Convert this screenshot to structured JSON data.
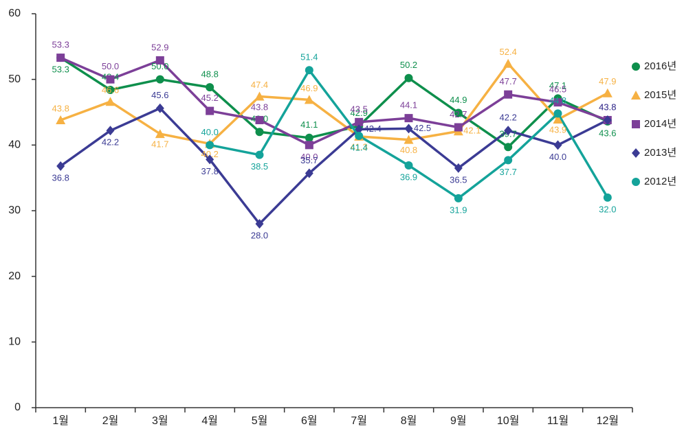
{
  "chart_data": {
    "type": "line",
    "categories": [
      "1월",
      "2월",
      "3월",
      "4월",
      "5월",
      "6월",
      "7월",
      "8월",
      "9월",
      "10월",
      "11월",
      "12월"
    ],
    "ylim": [
      0,
      60
    ],
    "yticks": [
      0,
      10,
      20,
      30,
      40,
      50,
      60
    ],
    "grid": false,
    "legend": "right",
    "series": [
      {
        "name": "2016년",
        "color": "#0e8f4c",
        "marker": "circle",
        "values": [
          53.3,
          48.4,
          50.0,
          48.8,
          42.0,
          41.1,
          42.9,
          50.2,
          44.9,
          39.7,
          47.1,
          43.6
        ],
        "value_labels": [
          "53.3",
          "48.4",
          "50.0",
          "48.8",
          "42.0",
          "41.1",
          "42.9",
          "50.2",
          "44.9",
          "39.7",
          "47.1",
          "43.6"
        ]
      },
      {
        "name": "2015년",
        "color": "#f6b143",
        "marker": "triangle",
        "values": [
          43.8,
          46.6,
          41.7,
          40.2,
          47.4,
          46.9,
          41.3,
          40.8,
          42.1,
          52.4,
          43.9,
          47.9
        ],
        "value_labels": [
          "43.8",
          "46.6",
          "41.7",
          "40.2",
          "47.4",
          "46.9",
          "41.3",
          "40.8",
          "42.1",
          "52.4",
          "43.9",
          "47.9"
        ]
      },
      {
        "name": "2014년",
        "color": "#7c3f98",
        "marker": "square",
        "values": [
          53.3,
          50.0,
          52.9,
          45.2,
          43.8,
          40.0,
          43.5,
          44.1,
          42.7,
          47.7,
          46.5,
          43.8
        ],
        "value_labels": [
          "53.3",
          "50.0",
          "52.9",
          "45.2",
          "43.8",
          "40.0",
          "43.5",
          "44.1",
          "42.7",
          "47.7",
          "46.5",
          "43.8"
        ]
      },
      {
        "name": "2013년",
        "color": "#3b3b94",
        "marker": "diamond",
        "values": [
          36.8,
          42.2,
          45.6,
          37.8,
          28.0,
          35.7,
          42.4,
          42.5,
          36.5,
          42.2,
          40.0,
          43.8
        ],
        "value_labels": [
          "36.8",
          "42.2",
          "45.6",
          "37.8",
          "28.0",
          "35.7",
          "42.4",
          "42.5",
          "36.5",
          "42.2",
          "40.0",
          "43.8"
        ]
      },
      {
        "name": "2012년",
        "color": "#14a39a",
        "marker": "circle",
        "values": [
          null,
          null,
          null,
          40.0,
          38.5,
          51.4,
          41.4,
          36.9,
          31.9,
          37.7,
          44.8,
          32.0
        ],
        "value_labels": [
          null,
          null,
          null,
          "40.0",
          "38.5",
          "51.4",
          "41.4",
          "36.9",
          "31.9",
          "37.7",
          "44.8",
          "32.0"
        ]
      }
    ]
  }
}
